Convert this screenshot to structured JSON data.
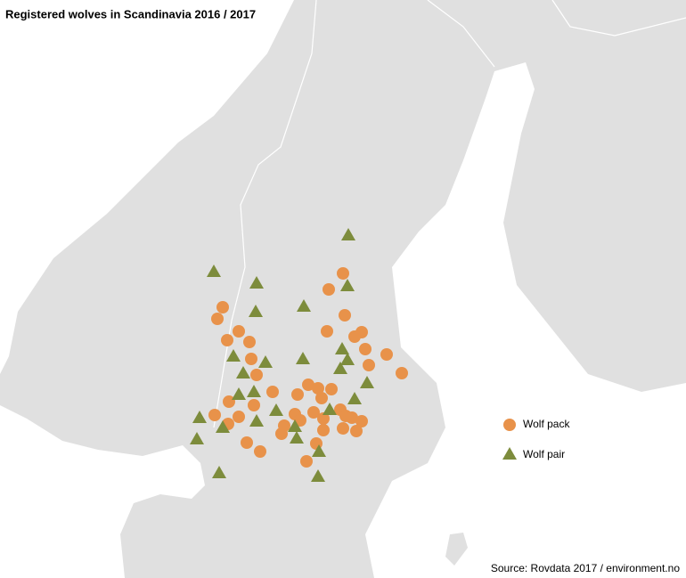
{
  "title": "Registered wolves in Scandinavia 2016 / 2017",
  "legend": [
    {
      "label": "Wolf pack"
    },
    {
      "label": "Wolf pair"
    }
  ],
  "source": "Source: Rovdata 2017 / environment.no"
}
